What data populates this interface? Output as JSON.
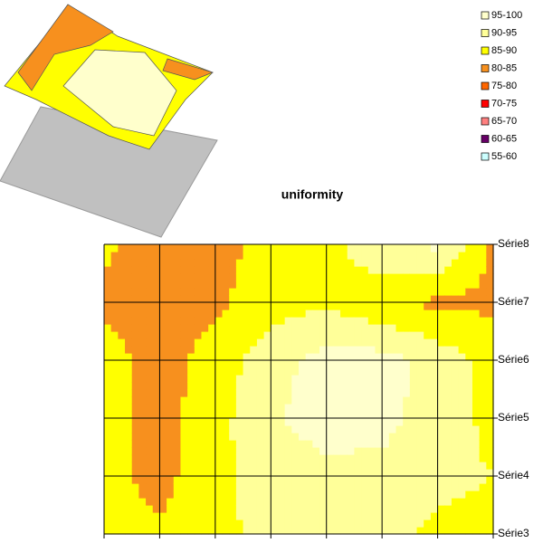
{
  "chart_data": {
    "type": "contour",
    "title": "uniformity",
    "categories": [
      null,
      null,
      null,
      null,
      null,
      null,
      null,
      null
    ],
    "series": [
      {
        "name": "Série3",
        "values": [
          87,
          86,
          89,
          91,
          92,
          91,
          89,
          89
        ]
      },
      {
        "name": "Série4",
        "values": [
          87,
          83,
          89,
          92,
          94,
          93,
          91,
          90
        ]
      },
      {
        "name": "Série5",
        "values": [
          87,
          83,
          88,
          94.5,
          97,
          97,
          92,
          89
        ]
      },
      {
        "name": "Série6",
        "values": [
          87,
          83,
          87,
          93,
          97,
          97,
          93,
          88
        ]
      },
      {
        "name": "Série7",
        "values": [
          84,
          82,
          84,
          88,
          89,
          86,
          84,
          84
        ]
      },
      {
        "name": "Série8",
        "values": [
          86,
          82,
          83,
          87,
          88,
          94,
          96,
          84
        ]
      }
    ],
    "bands": [
      {
        "label": "95-100",
        "color": "#ffffcc"
      },
      {
        "label": "90-95",
        "color": "#ffff99"
      },
      {
        "label": "85-90",
        "color": "#ffff00"
      },
      {
        "label": "80-85",
        "color": "#f7901e"
      },
      {
        "label": "75-80",
        "color": "#ff6600"
      },
      {
        "label": "70-75",
        "color": "#ff0000"
      },
      {
        "label": "65-70",
        "color": "#ff8080"
      },
      {
        "label": "60-65",
        "color": "#660066"
      },
      {
        "label": "55-60",
        "color": "#ccffff"
      }
    ]
  }
}
